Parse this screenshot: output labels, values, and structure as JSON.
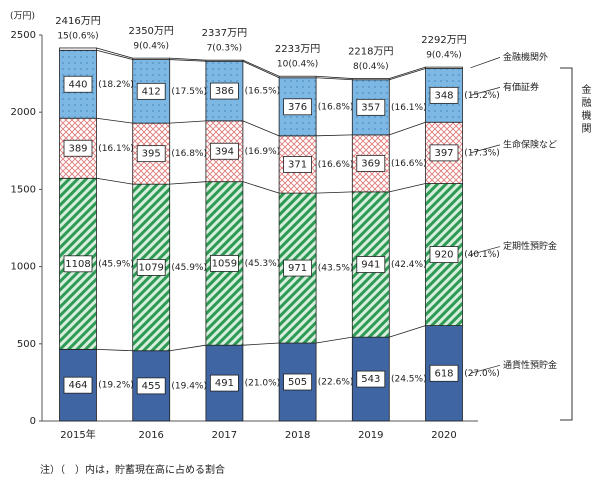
{
  "chart_data": {
    "type": "stacked-bar",
    "y_unit": "(万円)",
    "categories": [
      "2015年",
      "2016",
      "2017",
      "2018",
      "2019",
      "2020"
    ],
    "totals": [
      "2416万円",
      "2350万円",
      "2337万円",
      "2233万円",
      "2218万円",
      "2292万円"
    ],
    "ylim": [
      0,
      2500
    ],
    "yticks": [
      0,
      500,
      1000,
      1500,
      2000,
      2500
    ],
    "series": [
      {
        "name": "通貨性預貯金",
        "color": "#3f66a3",
        "pattern": "solid",
        "values": [
          464,
          455,
          491,
          505,
          543,
          618
        ],
        "shares": [
          "(19.2%)",
          "(19.4%)",
          "(21.0%)",
          "(22.6%)",
          "(24.5%)",
          "(27.0%)"
        ]
      },
      {
        "name": "定期性預貯金",
        "color": "#2f9a55",
        "pattern": "hatch",
        "values": [
          1108,
          1079,
          1059,
          971,
          941,
          920
        ],
        "shares": [
          "(45.9%)",
          "(45.9%)",
          "(45.3%)",
          "(43.5%)",
          "(42.4%)",
          "(40.1%)"
        ]
      },
      {
        "name": "生命保険など",
        "color": "#e07a7a",
        "pattern": "cross",
        "values": [
          389,
          395,
          394,
          371,
          369,
          397
        ],
        "shares": [
          "(16.1%)",
          "(16.8%)",
          "(16.9%)",
          "(16.6%)",
          "(16.6%)",
          "(17.3%)"
        ]
      },
      {
        "name": "有価証券",
        "color": "#7db7e3",
        "pattern": "dots",
        "values": [
          440,
          412,
          386,
          376,
          357,
          348
        ],
        "shares": [
          "(18.2%)",
          "(17.5%)",
          "(16.5%)",
          "(16.8%)",
          "(16.1%)",
          "(15.2%)"
        ]
      },
      {
        "name": "金融機関外",
        "color": "#ffffff",
        "pattern": "none",
        "values": [
          15,
          9,
          7,
          10,
          8,
          9
        ],
        "value_labels": [
          "15(0.6%)",
          "9(0.4%)",
          "7(0.3%)",
          "10(0.4%)",
          "8(0.4%)",
          "9(0.4%)"
        ]
      }
    ],
    "bracket_label": "金融機関",
    "note": "注）（　）内は，貯蓄現在高に占める割合"
  }
}
